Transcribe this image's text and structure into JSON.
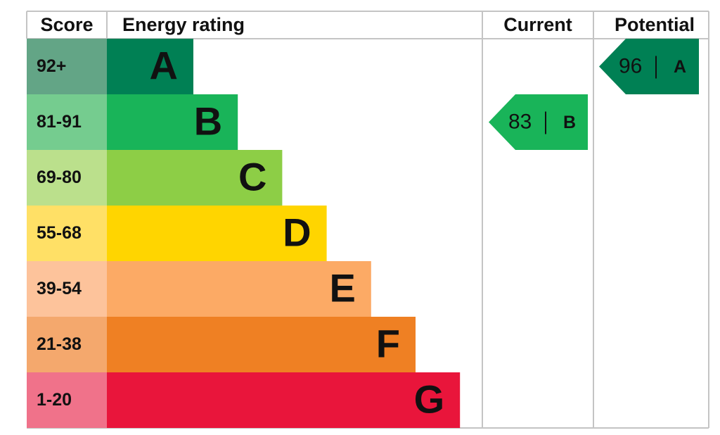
{
  "chart_data": {
    "type": "epc",
    "headers": {
      "score": "Score",
      "rating": "Energy rating",
      "current": "Current",
      "potential": "Potential"
    },
    "bands": [
      {
        "score": "92+",
        "rating": "A",
        "color": "#008054",
        "score_color": "#63a586"
      },
      {
        "score": "81-91",
        "rating": "B",
        "color": "#19b459",
        "score_color": "#75cc8f"
      },
      {
        "score": "69-80",
        "rating": "C",
        "color": "#8dce46",
        "score_color": "#bbe08c"
      },
      {
        "score": "55-68",
        "rating": "D",
        "color": "#ffd500",
        "score_color": "#ffe066"
      },
      {
        "score": "39-54",
        "rating": "E",
        "color": "#fcaa65",
        "score_color": "#fdc39b"
      },
      {
        "score": "21-38",
        "rating": "F",
        "color": "#ef8023",
        "score_color": "#f4a86d"
      },
      {
        "score": "1-20",
        "rating": "G",
        "color": "#e9153b",
        "score_color": "#f0728a"
      }
    ],
    "current": {
      "value": 83,
      "rating": "B"
    },
    "potential": {
      "value": 96,
      "rating": "A"
    }
  }
}
